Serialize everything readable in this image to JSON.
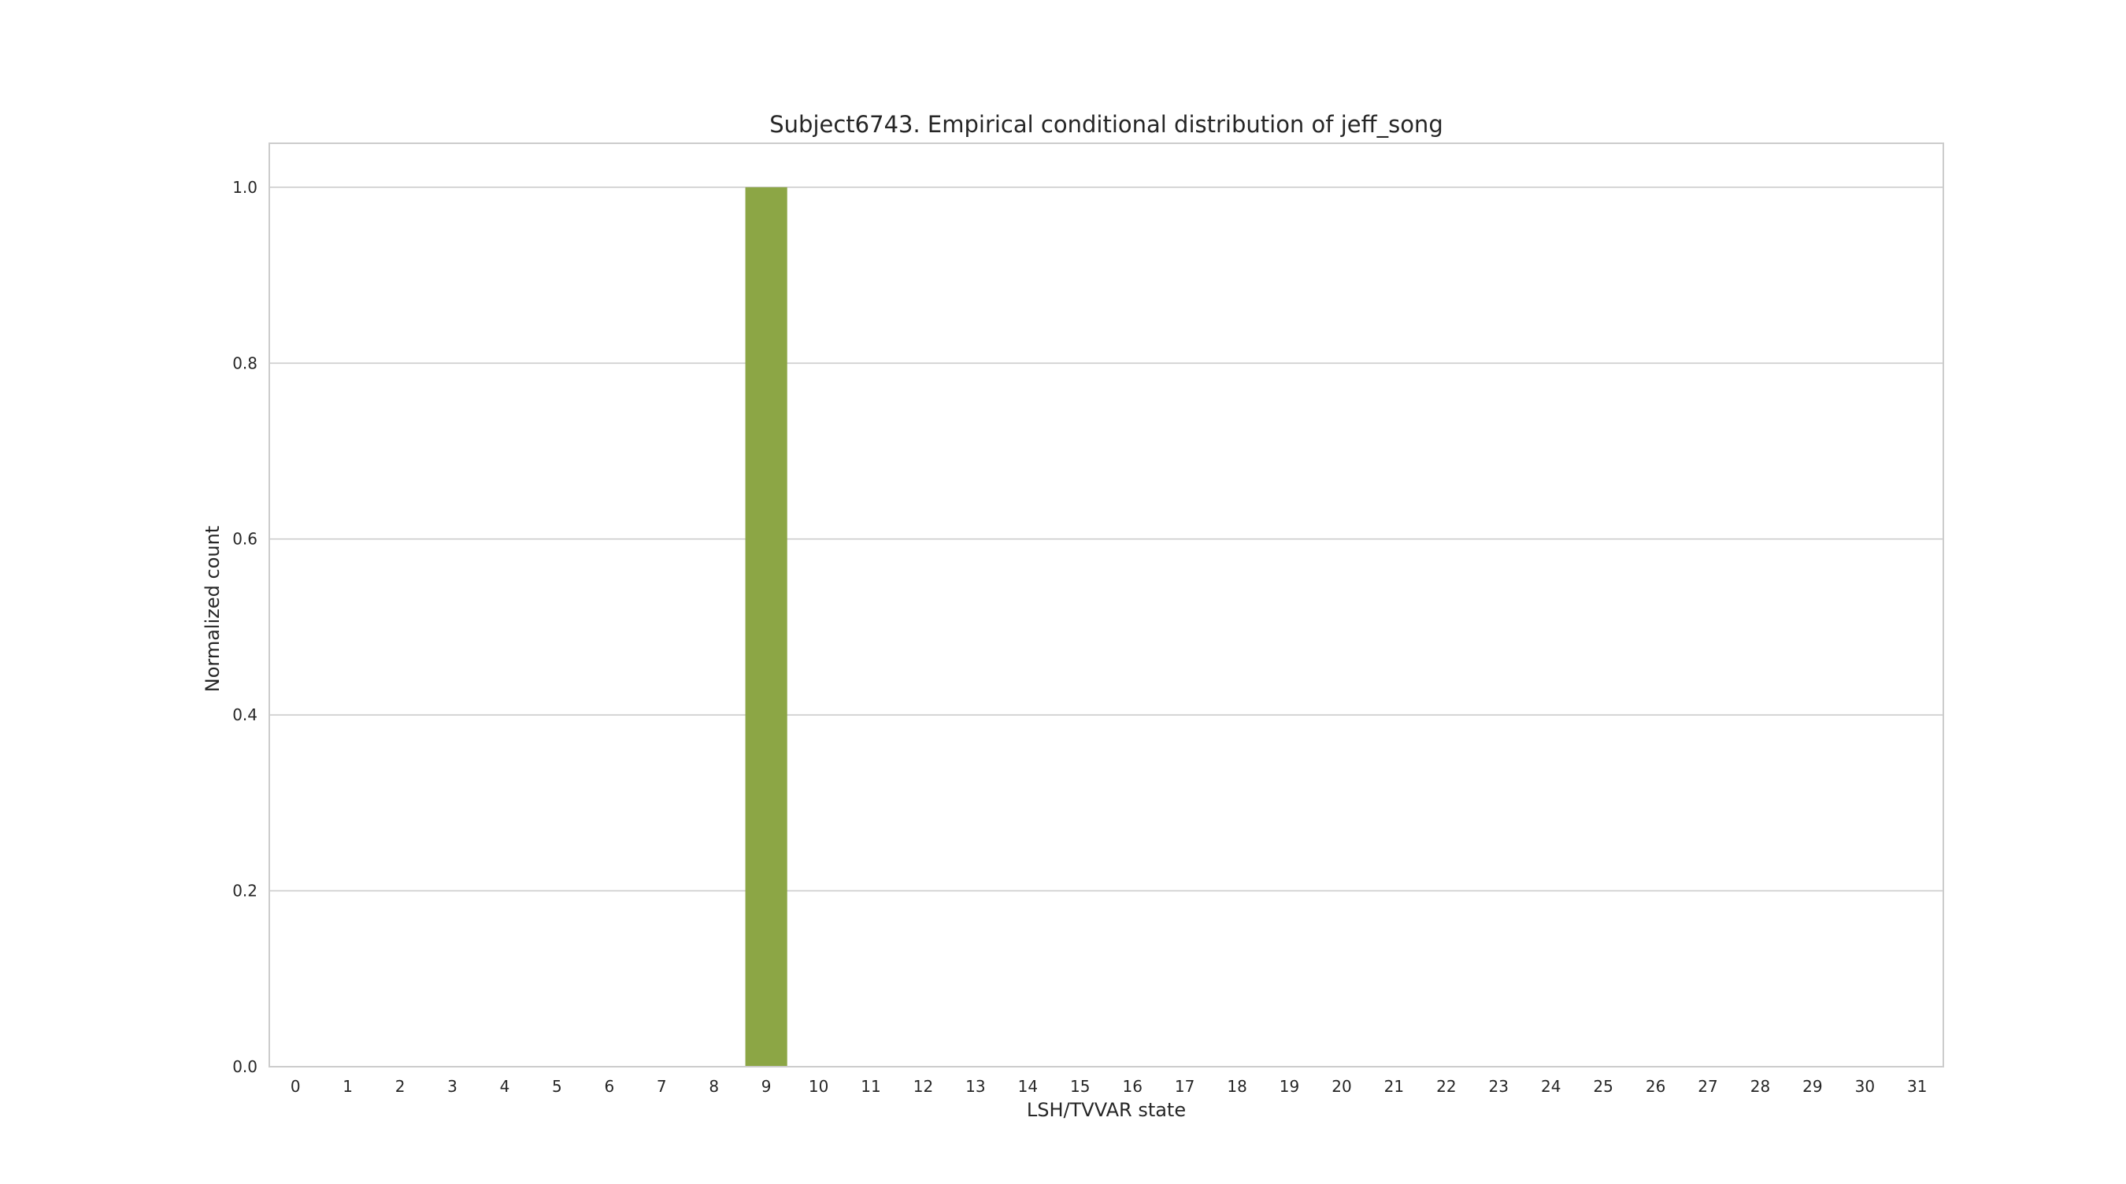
{
  "chart_data": {
    "type": "bar",
    "title": "Subject6743. Empirical conditional distribution of jeff_song",
    "xlabel": "LSH/TVVAR state",
    "ylabel": "Normalized count",
    "categories": [
      "0",
      "1",
      "2",
      "3",
      "4",
      "5",
      "6",
      "7",
      "8",
      "9",
      "10",
      "11",
      "12",
      "13",
      "14",
      "15",
      "16",
      "17",
      "18",
      "19",
      "20",
      "21",
      "22",
      "23",
      "24",
      "25",
      "26",
      "27",
      "28",
      "29",
      "30",
      "31"
    ],
    "values": [
      0,
      0,
      0,
      0,
      0,
      0,
      0,
      0,
      0,
      1.0,
      0,
      0,
      0,
      0,
      0,
      0,
      0,
      0,
      0,
      0,
      0,
      0,
      0,
      0,
      0,
      0,
      0,
      0,
      0,
      0,
      0,
      0
    ],
    "ylim": [
      0,
      1.05
    ],
    "yticks": [
      "0.0",
      "0.2",
      "0.4",
      "0.6",
      "0.8",
      "1.0"
    ],
    "grid": "horizontal",
    "bar_color": "#8ca645",
    "grid_color": "#cccccc",
    "text_color": "#262626"
  }
}
